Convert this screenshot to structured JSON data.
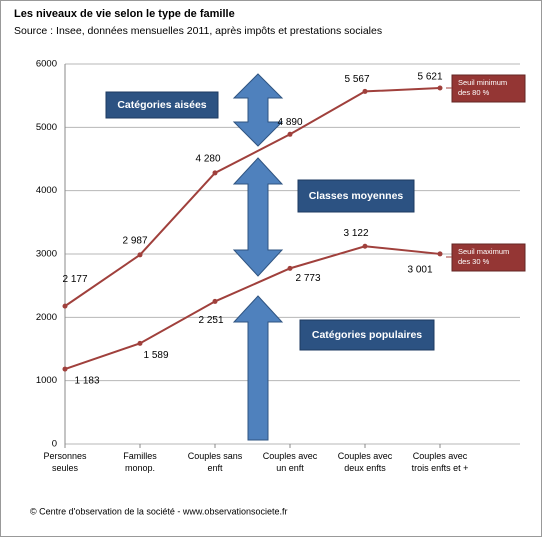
{
  "chart_data": {
    "type": "line",
    "title": "Les niveaux de vie selon le type de famille",
    "subtitle": "Source : Insee, données mensuelles 2011, après impôts et prestations sociales",
    "footer": "© Centre d'observation de la société - www.observationsociete.fr",
    "categories": [
      "Personnes\nseules",
      "Familles\nmonop.",
      "Couples sans\nenft",
      "Couples avec\nun enft",
      "Couples avec\ndeux enfts",
      "Couples avec\ntrois enfts et +"
    ],
    "series": [
      {
        "name": "Seuil minimum\ndes 80 %",
        "color": "#a0403c",
        "values": [
          2177,
          2987,
          4280,
          4890,
          5567,
          5621
        ],
        "value_labels": [
          "2 177",
          "2 987",
          "4 280",
          "4 890",
          "5 567",
          "5 621"
        ]
      },
      {
        "name": "Seuil maximum\ndes 30 %",
        "color": "#a0403c",
        "values": [
          1183,
          1589,
          2251,
          2773,
          3122,
          3001
        ],
        "value_labels": [
          "1 183",
          "1 589",
          "2 251",
          "2 773",
          "3 122",
          "3 001"
        ]
      }
    ],
    "annotations": [
      "Catégories aisées",
      "Classes moyennes",
      "Catégories populaires"
    ],
    "ylim": [
      0,
      6000
    ],
    "yticks": [
      0,
      1000,
      2000,
      3000,
      4000,
      5000,
      6000
    ],
    "grid": true
  }
}
